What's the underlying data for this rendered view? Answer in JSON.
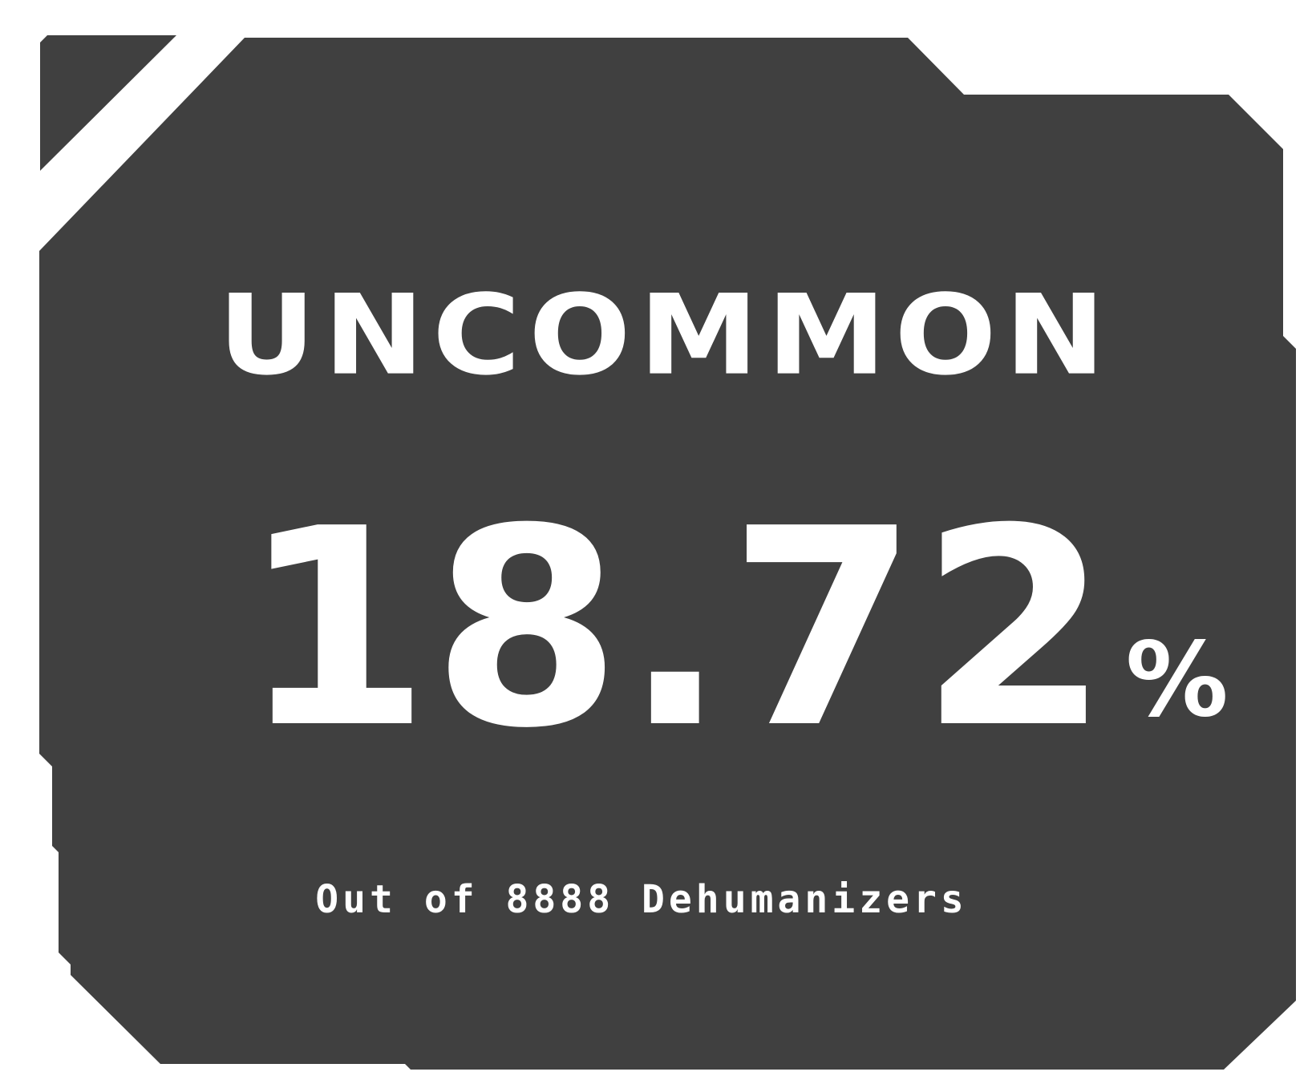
{
  "card": {
    "rarity_label": "UNCOMMON",
    "percentage_value": "18.72",
    "percent_symbol": "%",
    "subtitle": "Out of 8888 Dehumanizers"
  },
  "colors": {
    "panel": "#404040",
    "text": "#ffffff",
    "background": "#ffffff"
  }
}
